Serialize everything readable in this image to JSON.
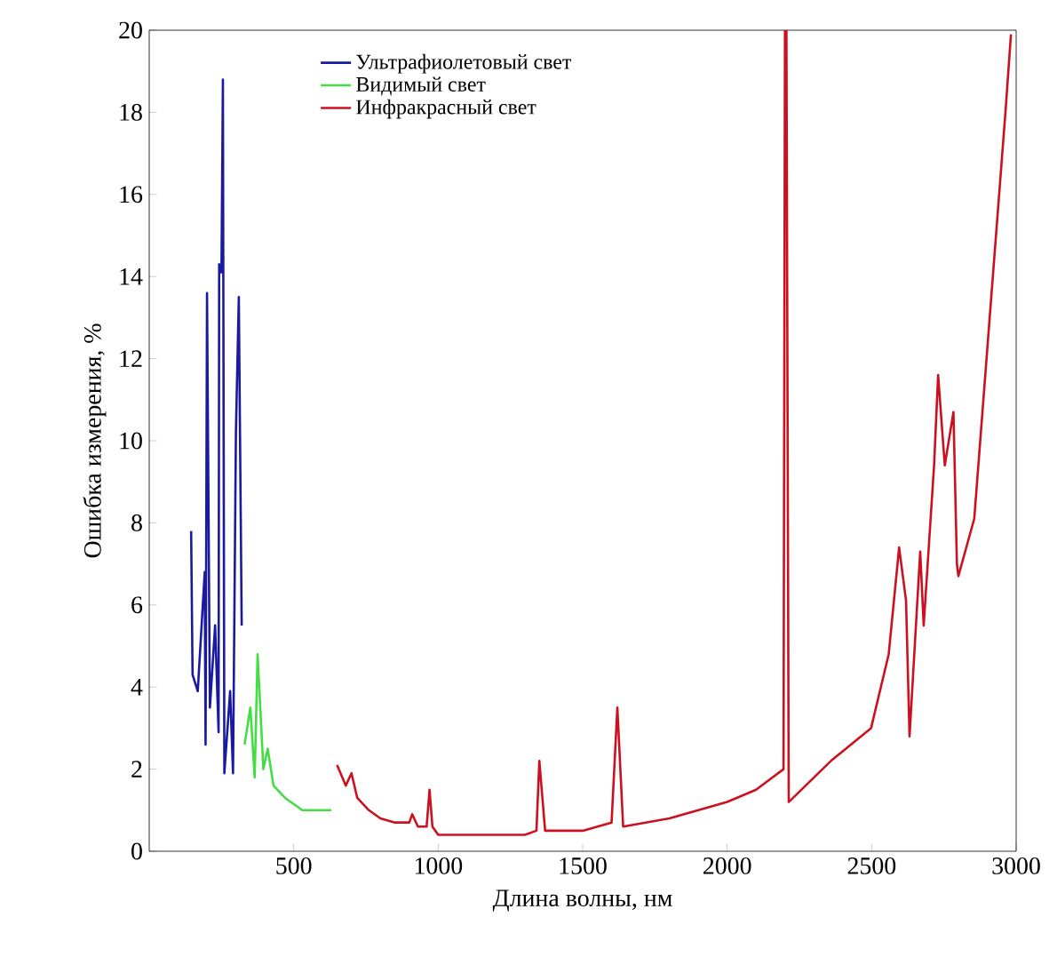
{
  "chart_data": {
    "type": "line",
    "xlabel": "Длина волны, нм",
    "ylabel": "Ошибка измерения, %",
    "xlim": [
      0,
      3000
    ],
    "ylim": [
      0,
      20
    ],
    "xticks": [
      500,
      1000,
      1500,
      2000,
      2500,
      3000
    ],
    "yticks": [
      0,
      2,
      4,
      6,
      8,
      10,
      12,
      14,
      16,
      18,
      20
    ],
    "legend": "top",
    "grid": false,
    "series": [
      {
        "name": "Ультрафиолетовый свет",
        "color": "#1a1aa0",
        "x": [
          145,
          150,
          168,
          192,
          195,
          200,
          210,
          228,
          240,
          242,
          250,
          255,
          260,
          280,
          290,
          300,
          310,
          320
        ],
        "values": [
          7.8,
          4.3,
          3.9,
          6.8,
          2.6,
          13.6,
          3.5,
          5.5,
          2.9,
          14.3,
          14.1,
          18.8,
          1.9,
          3.9,
          1.9,
          10.2,
          13.5,
          5.5
        ]
      },
      {
        "name": "Видимый свет",
        "color": "#44dd44",
        "x": [
          330,
          350,
          365,
          375,
          395,
          410,
          430,
          470,
          530,
          630
        ],
        "values": [
          2.6,
          3.5,
          1.8,
          4.8,
          2.0,
          2.5,
          1.6,
          1.3,
          1.0,
          1.0
        ]
      },
      {
        "name": "Инфракрасный свет",
        "color": "#cc1020",
        "x": [
          650,
          680,
          700,
          720,
          760,
          800,
          850,
          900,
          910,
          930,
          960,
          970,
          980,
          1000,
          1300,
          1340,
          1350,
          1370,
          1500,
          1600,
          1620,
          1640,
          1800,
          1900,
          2000,
          2100,
          2195,
          2200,
          2205,
          2213,
          2359,
          2498,
          2559,
          2595,
          2619,
          2631,
          2668,
          2680,
          2716,
          2730,
          2753,
          2783,
          2795,
          2800,
          2855,
          2964,
          2982
        ],
        "values": [
          2.1,
          1.6,
          1.9,
          1.3,
          1.0,
          0.8,
          0.7,
          0.7,
          0.9,
          0.6,
          0.6,
          1.5,
          0.6,
          0.4,
          0.4,
          0.5,
          2.2,
          0.5,
          0.5,
          0.7,
          3.5,
          0.6,
          0.8,
          1.0,
          1.2,
          1.5,
          2.0,
          20,
          20,
          1.2,
          2.2,
          3.0,
          4.8,
          7.4,
          6.1,
          2.8,
          7.3,
          5.5,
          9.4,
          11.6,
          9.4,
          10.7,
          7.0,
          6.7,
          8.1,
          18.1,
          19.9
        ]
      }
    ]
  }
}
